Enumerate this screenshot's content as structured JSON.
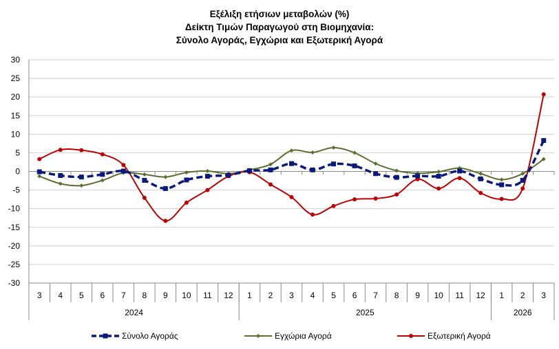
{
  "chart_data": {
    "type": "line",
    "title": [
      "Εξέλιξη ετήσιων μεταβολών (%)",
      "Δείκτη Τιμών Παραγωγού στη Βιομηχανία:",
      "Σύνολο Αγοράς, Εγχώρια και Εξωτερική Αγορά"
    ],
    "categories": [
      "3",
      "4",
      "5",
      "6",
      "7",
      "8",
      "9",
      "10",
      "11",
      "12",
      "1",
      "2",
      "3",
      "4",
      "5",
      "6",
      "7",
      "8",
      "9",
      "10",
      "11",
      "12",
      "1",
      "2",
      "3"
    ],
    "year_groups": [
      {
        "label": "2024",
        "count": 10
      },
      {
        "label": "2025",
        "count": 12
      },
      {
        "label": "2026",
        "count": 3
      }
    ],
    "ylim": [
      -30,
      30
    ],
    "yticks": [
      -30,
      -25,
      -20,
      -15,
      -10,
      -5,
      0,
      5,
      10,
      15,
      20,
      25,
      30
    ],
    "grid": true,
    "legend_position": "bottom",
    "series": [
      {
        "name": "Σύνολο Αγοράς",
        "color": "#0a1a7a",
        "style": "dashed",
        "marker": "square",
        "values": [
          -0.1,
          -1.1,
          -1.5,
          -0.8,
          0.1,
          -2.4,
          -4.6,
          -2.3,
          -1.3,
          -1.0,
          0.2,
          0.4,
          2.1,
          0.4,
          2.0,
          1.5,
          -0.6,
          -1.6,
          -1.2,
          -1.3,
          0.1,
          -2.0,
          -3.6,
          -2.4,
          8.3
        ]
      },
      {
        "name": "Εγχώρια Αγορά",
        "color": "#5a6e2e",
        "style": "solid",
        "marker": "diamond",
        "values": [
          -1.3,
          -3.3,
          -3.8,
          -2.4,
          -0.4,
          -0.8,
          -1.5,
          -0.3,
          0.1,
          -0.6,
          0.4,
          1.9,
          5.6,
          5.1,
          6.4,
          5.0,
          2.1,
          0.2,
          -0.5,
          -0.1,
          0.9,
          -0.6,
          -2.2,
          -0.6,
          3.3
        ]
      },
      {
        "name": "Εξωτερική Αγορά",
        "color": "#c00000",
        "style": "solid",
        "marker": "circle",
        "values": [
          3.3,
          5.8,
          5.7,
          4.6,
          1.7,
          -7.1,
          -13.3,
          -8.4,
          -5.0,
          -1.3,
          -0.2,
          -3.5,
          -6.9,
          -11.6,
          -9.3,
          -7.5,
          -7.3,
          -6.2,
          -2.1,
          -4.6,
          -1.8,
          -5.8,
          -7.4,
          -4.6,
          20.7
        ]
      }
    ]
  }
}
